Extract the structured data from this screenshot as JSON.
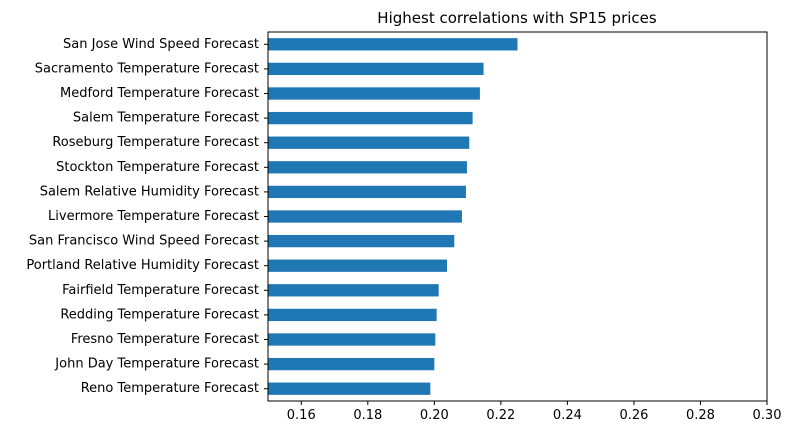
{
  "chart_data": {
    "type": "bar",
    "orientation": "horizontal",
    "title": "Highest correlations with SP15 prices",
    "xlabel": "",
    "ylabel": "",
    "xlim": [
      0.15,
      0.3
    ],
    "xticks": [
      "0.16",
      "0.18",
      "0.20",
      "0.22",
      "0.24",
      "0.26",
      "0.28",
      "0.30"
    ],
    "bar_color": "#1f77b4",
    "grid": false,
    "categories": [
      "San Jose Wind Speed Forecast",
      "Sacramento Temperature Forecast",
      "Medford Temperature Forecast",
      "Salem Temperature Forecast",
      "Roseburg Temperature Forecast",
      "Stockton Temperature Forecast",
      "Salem Relative Humidity Forecast",
      "Livermore Temperature Forecast",
      "San Francisco Wind Speed Forecast",
      "Portland Relative Humidity Forecast",
      "Fairfield Temperature Forecast",
      "Redding Temperature Forecast",
      "Fresno Temperature Forecast",
      "John Day Temperature Forecast",
      "Reno Temperature Forecast"
    ],
    "values": [
      0.225,
      0.2148,
      0.2137,
      0.2115,
      0.2105,
      0.2098,
      0.2095,
      0.2083,
      0.206,
      0.2038,
      0.2013,
      0.2007,
      0.2003,
      0.2,
      0.1988
    ]
  }
}
